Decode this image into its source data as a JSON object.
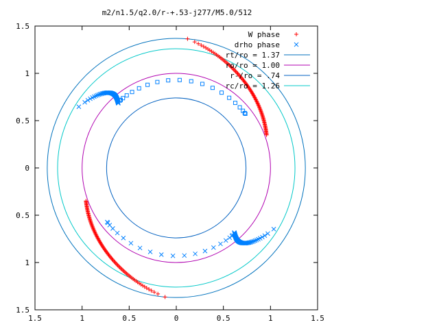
{
  "chart_data": {
    "type": "scatter",
    "title": "m2/n1.5/q2.0/r-+.53-j277/M5.0/512",
    "xlim": [
      -1.5,
      1.5
    ],
    "ylim": [
      -1.5,
      1.5
    ],
    "x_ticks": [
      "1.5",
      "1",
      "0.5",
      "0",
      "0.5",
      "1",
      "1.5"
    ],
    "y_ticks": [
      "1.5",
      "1",
      "0.5",
      "0",
      "0.5",
      "1",
      "1.5"
    ],
    "legend_position": "top-right",
    "series": [
      {
        "name": "W phase",
        "kind": "points",
        "marker": "plus",
        "color": "#ff0000"
      },
      {
        "name": "drho phase",
        "kind": "points",
        "marker": "cross",
        "color": "#0080ff"
      },
      {
        "name": "rt/ro = 1.37",
        "kind": "circle",
        "radius": 1.37,
        "color": "#0072bd"
      },
      {
        "name": "ro/ro = 1.00",
        "kind": "circle",
        "radius": 1.0,
        "color": "#b000b0"
      },
      {
        "name": "r-/ro = .74",
        "kind": "circle",
        "radius": 0.74,
        "color": "#0060c0"
      },
      {
        "name": "rc/ro = 1.26",
        "kind": "circle",
        "radius": 1.26,
        "color": "#00c8c8"
      }
    ],
    "w_phase_arcs": [
      {
        "r": [
          1.37,
          1.02
        ],
        "theta_deg": [
          85,
          20
        ],
        "shift_deg": 5
      },
      {
        "r": [
          1.37,
          1.02
        ],
        "theta_deg": [
          265,
          200
        ],
        "shift_deg": 5
      }
    ],
    "drho_phase_arcs": [
      {
        "r": [
          1.22,
          0.92
        ],
        "theta_deg": [
          148,
          132
        ],
        "shift_deg": -8
      },
      {
        "r": [
          1.22,
          0.92
        ],
        "theta_deg": [
          328,
          312
        ],
        "shift_deg": -8
      },
      {
        "r": [
          0.93,
          0.93
        ],
        "theta_deg": [
          130,
          38
        ],
        "spacing": "sparse-middle"
      },
      {
        "r": [
          0.93,
          0.93
        ],
        "theta_deg": [
          310,
          218
        ],
        "spacing": "sparse-middle"
      }
    ]
  }
}
